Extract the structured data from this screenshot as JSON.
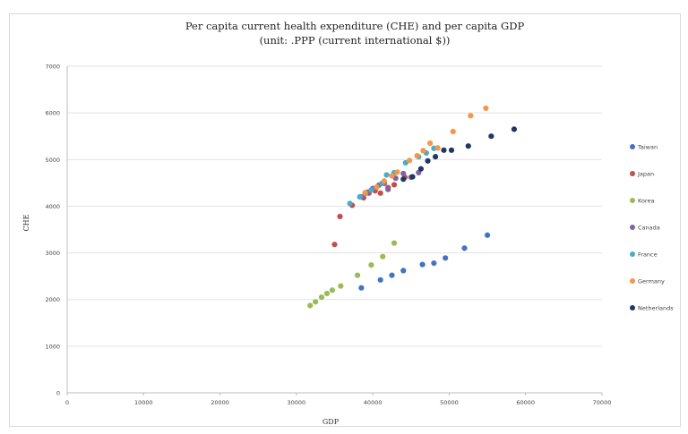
{
  "chart_data": {
    "type": "scatter",
    "title": "Per capita current health expenditure (CHE) and per capita GDP",
    "subtitle": "(unit: .PPP (current international $))",
    "xlabel": "GDP",
    "ylabel": "CHE",
    "xlim": [
      0,
      70000
    ],
    "ylim": [
      0,
      7000
    ],
    "xticks": [
      0,
      10000,
      20000,
      30000,
      40000,
      50000,
      60000,
      70000
    ],
    "yticks": [
      0,
      1000,
      2000,
      3000,
      4000,
      5000,
      6000,
      7000
    ],
    "grid": "horizontal",
    "legend_position": "right",
    "series": [
      {
        "name": "Taiwan",
        "color": "#4472c4",
        "points": [
          [
            38500,
            2250
          ],
          [
            41000,
            2420
          ],
          [
            42500,
            2520
          ],
          [
            44000,
            2620
          ],
          [
            46500,
            2750
          ],
          [
            48000,
            2780
          ],
          [
            49500,
            2890
          ],
          [
            52000,
            3100
          ],
          [
            55000,
            3380
          ]
        ]
      },
      {
        "name": "Japan",
        "color": "#c0504d",
        "points": [
          [
            35000,
            3180
          ],
          [
            35700,
            3780
          ],
          [
            37300,
            4020
          ],
          [
            38800,
            4180
          ],
          [
            39500,
            4280
          ],
          [
            40300,
            4330
          ],
          [
            41000,
            4280
          ],
          [
            42000,
            4400
          ],
          [
            42800,
            4460
          ],
          [
            44200,
            4620
          ]
        ]
      },
      {
        "name": "Korea",
        "color": "#9bbb59",
        "points": [
          [
            31800,
            1870
          ],
          [
            32500,
            1950
          ],
          [
            33300,
            2050
          ],
          [
            34000,
            2130
          ],
          [
            34700,
            2200
          ],
          [
            35800,
            2290
          ],
          [
            38000,
            2520
          ],
          [
            39800,
            2740
          ],
          [
            41300,
            2920
          ],
          [
            42800,
            3210
          ]
        ]
      },
      {
        "name": "Canada",
        "color": "#8064a2",
        "points": [
          [
            38500,
            4200
          ],
          [
            39300,
            4300
          ],
          [
            40000,
            4380
          ],
          [
            40800,
            4450
          ],
          [
            41500,
            4490
          ],
          [
            42000,
            4360
          ],
          [
            43000,
            4600
          ],
          [
            44000,
            4700
          ],
          [
            45000,
            4620
          ],
          [
            46000,
            4720
          ]
        ]
      },
      {
        "name": "France",
        "color": "#4bacc6",
        "points": [
          [
            37000,
            4060
          ],
          [
            38300,
            4200
          ],
          [
            39000,
            4270
          ],
          [
            39800,
            4350
          ],
          [
            41200,
            4490
          ],
          [
            41800,
            4670
          ],
          [
            42800,
            4720
          ],
          [
            44300,
            4930
          ],
          [
            46000,
            5060
          ],
          [
            47000,
            5140
          ],
          [
            48000,
            5240
          ]
        ]
      },
      {
        "name": "Germany",
        "color": "#f79646",
        "points": [
          [
            39000,
            4290
          ],
          [
            40500,
            4410
          ],
          [
            41500,
            4540
          ],
          [
            42500,
            4650
          ],
          [
            43200,
            4730
          ],
          [
            44800,
            4980
          ],
          [
            45800,
            5080
          ],
          [
            46600,
            5190
          ],
          [
            47500,
            5350
          ],
          [
            48500,
            5250
          ],
          [
            50500,
            5600
          ],
          [
            52800,
            5940
          ],
          [
            54800,
            6100
          ]
        ]
      },
      {
        "name": "Netherlands",
        "color": "#1f3864",
        "points": [
          [
            44000,
            4580
          ],
          [
            45200,
            4630
          ],
          [
            46300,
            4800
          ],
          [
            47200,
            4970
          ],
          [
            48200,
            5060
          ],
          [
            49300,
            5200
          ],
          [
            50300,
            5200
          ],
          [
            52500,
            5290
          ],
          [
            55500,
            5500
          ],
          [
            58500,
            5650
          ]
        ]
      }
    ]
  }
}
